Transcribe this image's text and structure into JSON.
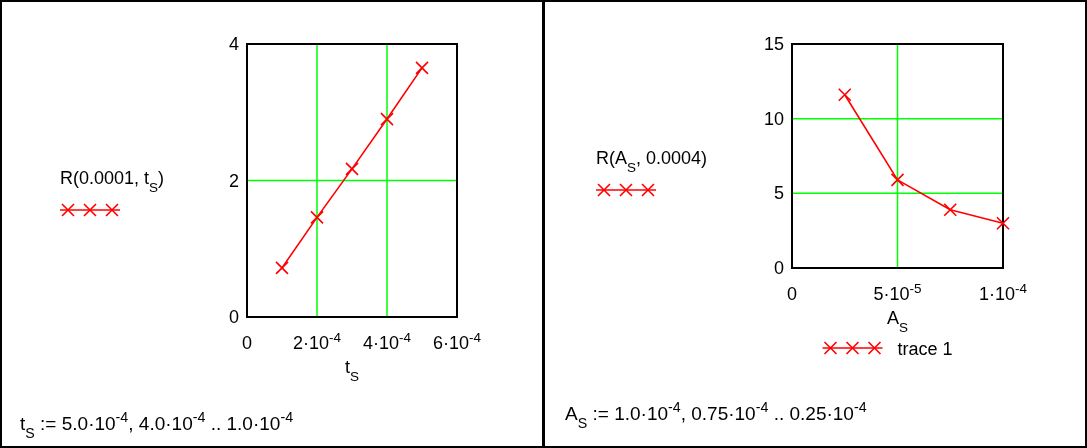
{
  "chart_data": [
    {
      "type": "line",
      "xlabel": "t$_{S}$",
      "ylabel": "R(0.0001, t$_{S}$)",
      "x": [
        0.0001,
        0.0002,
        0.0003,
        0.0004,
        0.0005
      ],
      "series": [
        {
          "color": "#ff0000",
          "values": [
            0.72,
            1.46,
            2.17,
            2.9,
            3.65
          ]
        }
      ],
      "xlim": [
        0,
        0.0006
      ],
      "xticks": [
        0,
        {
          "value": 0.0002,
          "label": "2·10$^{-4}$"
        },
        {
          "value": 0.0004,
          "label": "4·10$^{-4}$"
        },
        {
          "value": 0.0006,
          "label": "6·10$^{-4}$"
        }
      ],
      "ylim": [
        0,
        4
      ],
      "yticks": [
        0,
        2,
        4
      ],
      "grid": true,
      "marker": "cross",
      "legend": false,
      "annotations": [
        "t$_{S}$ := 5.0·10$^{-4}$, 4.0·10$^{-4}$ .. 1.0·10$^{-4}$"
      ]
    },
    {
      "type": "line",
      "xlabel": "A$_{S}$",
      "ylabel": "R(A$_{S}$, 0.0004)",
      "x": [
        2.5e-05,
        5e-05,
        7.5e-05,
        0.0001
      ],
      "series": [
        {
          "name": "trace 1",
          "color": "#ff0000",
          "values": [
            11.6,
            5.9,
            3.9,
            3.0
          ]
        }
      ],
      "xlim": [
        0,
        0.0001
      ],
      "xticks": [
        0,
        {
          "value": 5e-05,
          "label": "5·10$^{-5}$"
        },
        {
          "value": 0.0001,
          "label": "1·10$^{-4}$"
        }
      ],
      "ylim": [
        0,
        15
      ],
      "yticks": [
        0,
        5,
        10,
        15
      ],
      "grid": true,
      "marker": "cross",
      "legend": "bottom",
      "annotations": [
        "A$_{S}$ := 1.0·10$^{-4}$, 0.75·10$^{-4}$ .. 0.25·10$^{-4}$"
      ]
    }
  ]
}
